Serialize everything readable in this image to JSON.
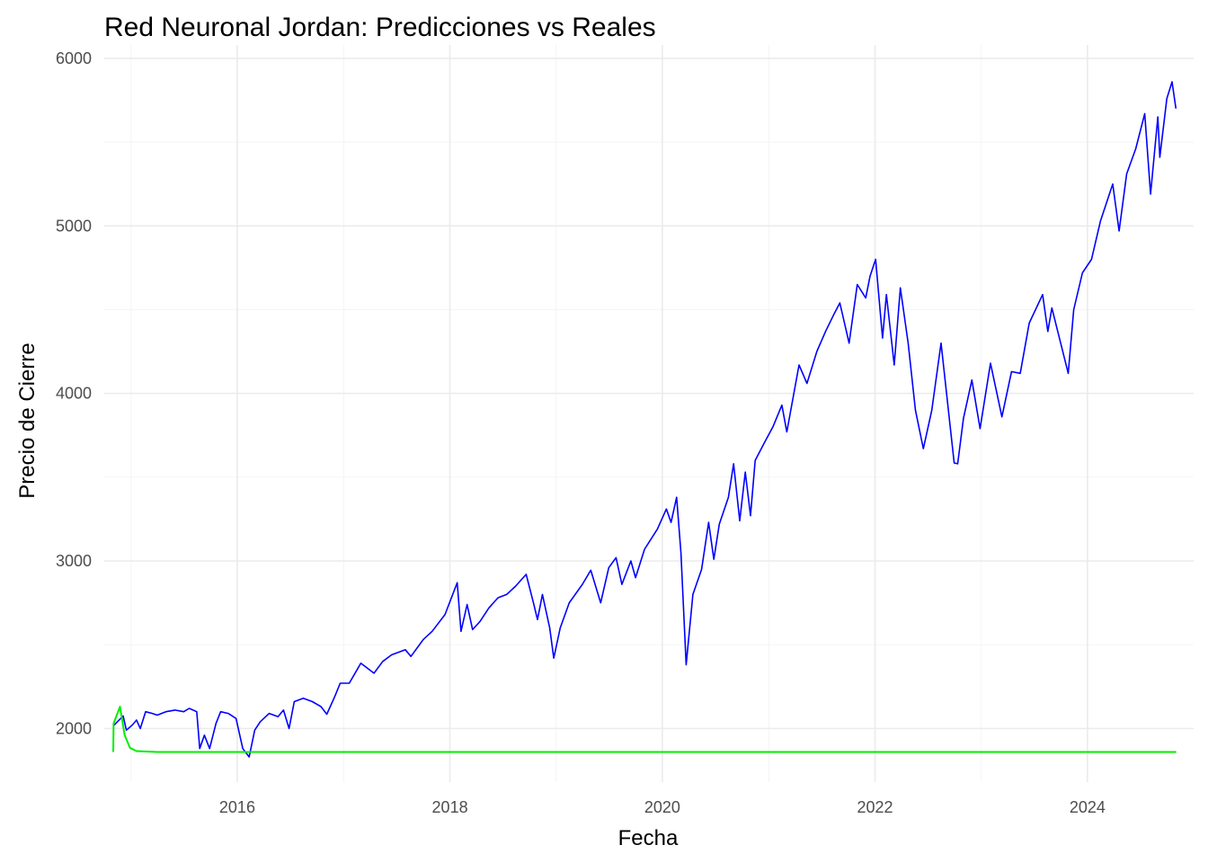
{
  "chart_data": {
    "type": "line",
    "title": "Red Neuronal Jordan: Predicciones vs Reales",
    "xlabel": "Fecha",
    "ylabel": "Precio de Cierre",
    "x_ticks": [
      "2016",
      "2018",
      "2020",
      "2022",
      "2024"
    ],
    "y_ticks": [
      2000,
      3000,
      4000,
      5000,
      6000
    ],
    "xlim": [
      "2014-10-01",
      "2024-12-31"
    ],
    "ylim": [
      1680,
      6080
    ],
    "grid": true,
    "legend": "none",
    "series": [
      {
        "color": "#0000ff",
        "points": [
          [
            "2014-11-03",
            2018
          ],
          [
            "2014-11-15",
            2040
          ],
          [
            "2014-12-05",
            2075
          ],
          [
            "2014-12-16",
            1990
          ],
          [
            "2015-01-05",
            2020
          ],
          [
            "2015-01-20",
            2050
          ],
          [
            "2015-02-02",
            2000
          ],
          [
            "2015-02-20",
            2100
          ],
          [
            "2015-03-15",
            2090
          ],
          [
            "2015-04-01",
            2080
          ],
          [
            "2015-05-01",
            2100
          ],
          [
            "2015-06-01",
            2110
          ],
          [
            "2015-07-01",
            2100
          ],
          [
            "2015-07-20",
            2120
          ],
          [
            "2015-08-15",
            2100
          ],
          [
            "2015-08-25",
            1880
          ],
          [
            "2015-09-10",
            1960
          ],
          [
            "2015-09-28",
            1880
          ],
          [
            "2015-10-20",
            2030
          ],
          [
            "2015-11-05",
            2100
          ],
          [
            "2015-12-01",
            2090
          ],
          [
            "2015-12-28",
            2060
          ],
          [
            "2016-01-20",
            1880
          ],
          [
            "2016-02-11",
            1830
          ],
          [
            "2016-03-01",
            1990
          ],
          [
            "2016-03-20",
            2040
          ],
          [
            "2016-04-20",
            2090
          ],
          [
            "2016-05-20",
            2070
          ],
          [
            "2016-06-08",
            2110
          ],
          [
            "2016-06-27",
            2000
          ],
          [
            "2016-07-15",
            2160
          ],
          [
            "2016-08-15",
            2180
          ],
          [
            "2016-09-15",
            2160
          ],
          [
            "2016-10-15",
            2130
          ],
          [
            "2016-11-04",
            2085
          ],
          [
            "2016-12-01",
            2190
          ],
          [
            "2016-12-20",
            2270
          ],
          [
            "2017-01-20",
            2270
          ],
          [
            "2017-03-01",
            2390
          ],
          [
            "2017-04-15",
            2330
          ],
          [
            "2017-05-15",
            2400
          ],
          [
            "2017-06-15",
            2440
          ],
          [
            "2017-08-01",
            2470
          ],
          [
            "2017-08-20",
            2430
          ],
          [
            "2017-10-01",
            2530
          ],
          [
            "2017-11-01",
            2580
          ],
          [
            "2017-12-15",
            2680
          ],
          [
            "2018-01-26",
            2870
          ],
          [
            "2018-02-08",
            2580
          ],
          [
            "2018-03-01",
            2740
          ],
          [
            "2018-03-20",
            2590
          ],
          [
            "2018-04-15",
            2640
          ],
          [
            "2018-05-15",
            2720
          ],
          [
            "2018-06-15",
            2780
          ],
          [
            "2018-07-15",
            2800
          ],
          [
            "2018-08-15",
            2850
          ],
          [
            "2018-09-20",
            2920
          ],
          [
            "2018-10-15",
            2750
          ],
          [
            "2018-10-29",
            2650
          ],
          [
            "2018-11-15",
            2800
          ],
          [
            "2018-12-10",
            2600
          ],
          [
            "2018-12-24",
            2420
          ],
          [
            "2019-01-15",
            2600
          ],
          [
            "2019-02-15",
            2750
          ],
          [
            "2019-04-01",
            2860
          ],
          [
            "2019-04-30",
            2945
          ],
          [
            "2019-06-03",
            2750
          ],
          [
            "2019-07-01",
            2960
          ],
          [
            "2019-07-26",
            3020
          ],
          [
            "2019-08-15",
            2860
          ],
          [
            "2019-09-15",
            3000
          ],
          [
            "2019-10-01",
            2900
          ],
          [
            "2019-11-01",
            3070
          ],
          [
            "2019-12-15",
            3190
          ],
          [
            "2020-01-15",
            3310
          ],
          [
            "2020-01-31",
            3230
          ],
          [
            "2020-02-19",
            3380
          ],
          [
            "2020-03-05",
            3050
          ],
          [
            "2020-03-23",
            2380
          ],
          [
            "2020-04-15",
            2800
          ],
          [
            "2020-05-15",
            2950
          ],
          [
            "2020-06-08",
            3230
          ],
          [
            "2020-06-26",
            3010
          ],
          [
            "2020-07-15",
            3220
          ],
          [
            "2020-08-15",
            3380
          ],
          [
            "2020-09-02",
            3580
          ],
          [
            "2020-09-23",
            3240
          ],
          [
            "2020-10-12",
            3530
          ],
          [
            "2020-10-30",
            3270
          ],
          [
            "2020-11-15",
            3600
          ],
          [
            "2020-12-15",
            3700
          ],
          [
            "2021-01-15",
            3800
          ],
          [
            "2021-02-15",
            3930
          ],
          [
            "2021-03-04",
            3770
          ],
          [
            "2021-04-15",
            4170
          ],
          [
            "2021-05-12",
            4060
          ],
          [
            "2021-06-15",
            4250
          ],
          [
            "2021-07-15",
            4370
          ],
          [
            "2021-08-15",
            4480
          ],
          [
            "2021-09-02",
            4540
          ],
          [
            "2021-10-04",
            4300
          ],
          [
            "2021-11-01",
            4650
          ],
          [
            "2021-11-30",
            4570
          ],
          [
            "2021-12-15",
            4700
          ],
          [
            "2022-01-03",
            4800
          ],
          [
            "2022-01-27",
            4330
          ],
          [
            "2022-02-09",
            4590
          ],
          [
            "2022-03-08",
            4170
          ],
          [
            "2022-03-29",
            4630
          ],
          [
            "2022-04-25",
            4300
          ],
          [
            "2022-05-20",
            3900
          ],
          [
            "2022-06-16",
            3670
          ],
          [
            "2022-07-15",
            3900
          ],
          [
            "2022-08-16",
            4300
          ],
          [
            "2022-09-30",
            3585
          ],
          [
            "2022-10-12",
            3580
          ],
          [
            "2022-11-01",
            3850
          ],
          [
            "2022-11-30",
            4080
          ],
          [
            "2022-12-28",
            3790
          ],
          [
            "2023-02-02",
            4180
          ],
          [
            "2023-03-13",
            3860
          ],
          [
            "2023-04-15",
            4130
          ],
          [
            "2023-05-15",
            4120
          ],
          [
            "2023-06-15",
            4420
          ],
          [
            "2023-07-31",
            4590
          ],
          [
            "2023-08-18",
            4370
          ],
          [
            "2023-09-01",
            4510
          ],
          [
            "2023-10-27",
            4120
          ],
          [
            "2023-11-15",
            4500
          ],
          [
            "2023-12-15",
            4720
          ],
          [
            "2024-01-15",
            4800
          ],
          [
            "2024-02-15",
            5030
          ],
          [
            "2024-03-28",
            5250
          ],
          [
            "2024-04-19",
            4970
          ],
          [
            "2024-05-15",
            5310
          ],
          [
            "2024-06-15",
            5460
          ],
          [
            "2024-07-16",
            5670
          ],
          [
            "2024-08-05",
            5190
          ],
          [
            "2024-08-30",
            5650
          ],
          [
            "2024-09-06",
            5410
          ],
          [
            "2024-09-30",
            5760
          ],
          [
            "2024-10-18",
            5860
          ],
          [
            "2024-10-31",
            5700
          ]
        ]
      },
      {
        "color": "#00ee00",
        "points": [
          [
            "2014-11-01",
            1860
          ],
          [
            "2014-11-02",
            2030
          ],
          [
            "2014-11-24",
            2130
          ],
          [
            "2014-12-10",
            1960
          ],
          [
            "2014-12-28",
            1885
          ],
          [
            "2015-01-20",
            1865
          ],
          [
            "2015-04-01",
            1860
          ],
          [
            "2024-11-01",
            1860
          ]
        ]
      }
    ]
  }
}
